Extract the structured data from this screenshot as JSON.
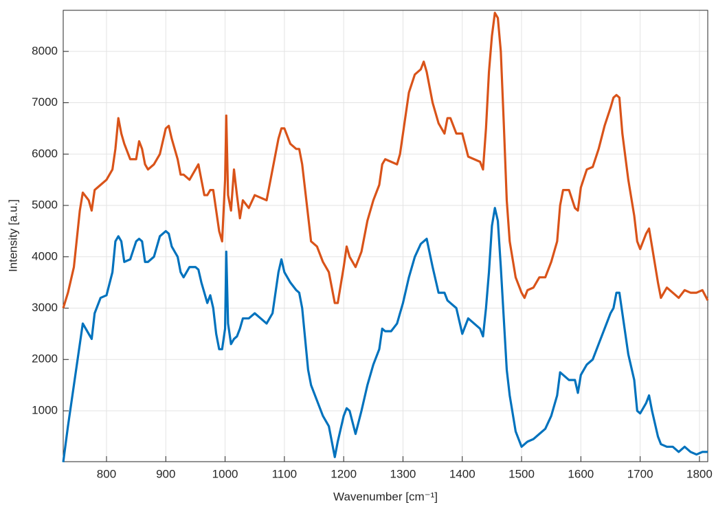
{
  "chart_data": {
    "type": "line",
    "xlabel": "Wavenumber [cm⁻¹]",
    "ylabel": "Intensity [a.u.]",
    "x": [
      727,
      735,
      745,
      755,
      760,
      770,
      775,
      780,
      790,
      800,
      810,
      815,
      820,
      825,
      830,
      840,
      850,
      855,
      860,
      865,
      870,
      880,
      890,
      900,
      905,
      910,
      920,
      925,
      930,
      940,
      950,
      955,
      960,
      965,
      970,
      975,
      980,
      985,
      990,
      995,
      1000,
      1002,
      1005,
      1010,
      1015,
      1020,
      1025,
      1030,
      1040,
      1050,
      1060,
      1070,
      1075,
      1080,
      1090,
      1095,
      1100,
      1110,
      1120,
      1125,
      1130,
      1140,
      1145,
      1155,
      1165,
      1175,
      1185,
      1190,
      1200,
      1205,
      1210,
      1220,
      1230,
      1240,
      1250,
      1260,
      1265,
      1270,
      1280,
      1290,
      1295,
      1300,
      1310,
      1320,
      1330,
      1335,
      1340,
      1350,
      1360,
      1365,
      1370,
      1375,
      1380,
      1390,
      1400,
      1410,
      1420,
      1430,
      1435,
      1440,
      1445,
      1450,
      1455,
      1460,
      1465,
      1470,
      1475,
      1480,
      1490,
      1500,
      1505,
      1510,
      1520,
      1530,
      1540,
      1550,
      1560,
      1565,
      1570,
      1580,
      1590,
      1595,
      1600,
      1610,
      1620,
      1630,
      1640,
      1650,
      1655,
      1660,
      1665,
      1670,
      1680,
      1690,
      1695,
      1700,
      1705,
      1710,
      1715,
      1720,
      1730,
      1735,
      1745,
      1755,
      1765,
      1775,
      1785,
      1795,
      1805,
      1814
    ],
    "series": [
      {
        "color": "#D95319",
        "values": [
          3000,
          3300,
          3800,
          4900,
          5250,
          5100,
          4900,
          5300,
          5400,
          5500,
          5700,
          6100,
          6700,
          6400,
          6200,
          5900,
          5900,
          6250,
          6100,
          5800,
          5700,
          5800,
          6000,
          6500,
          6550,
          6300,
          5900,
          5600,
          5600,
          5500,
          5700,
          5800,
          5500,
          5200,
          5200,
          5300,
          5300,
          4900,
          4500,
          4300,
          5500,
          6750,
          5200,
          4900,
          5700,
          5200,
          4750,
          5100,
          4950,
          5200,
          5150,
          5100,
          5400,
          5700,
          6300,
          6500,
          6500,
          6200,
          6100,
          6100,
          5800,
          4800,
          4300,
          4200,
          3900,
          3700,
          3100,
          3100,
          3800,
          4200,
          4000,
          3800,
          4100,
          4700,
          5100,
          5400,
          5800,
          5900,
          5850,
          5800,
          6000,
          6400,
          7200,
          7550,
          7650,
          7800,
          7600,
          7000,
          6600,
          6500,
          6400,
          6700,
          6700,
          6400,
          6400,
          5950,
          5900,
          5850,
          5700,
          6500,
          7600,
          8300,
          8750,
          8650,
          8000,
          6600,
          5100,
          4300,
          3600,
          3300,
          3200,
          3350,
          3400,
          3600,
          3600,
          3900,
          4300,
          5000,
          5300,
          5300,
          4950,
          4900,
          5350,
          5700,
          5750,
          6100,
          6550,
          6900,
          7100,
          7150,
          7100,
          6400,
          5500,
          4800,
          4300,
          4150,
          4300,
          4450,
          4550,
          4200,
          3500,
          3200,
          3400,
          3300,
          3200,
          3350,
          3300,
          3300,
          3350,
          3150
        ]
      },
      {
        "color": "#0072BD",
        "values": [
          0,
          700,
          1500,
          2300,
          2700,
          2500,
          2400,
          2900,
          3200,
          3250,
          3700,
          4300,
          4400,
          4300,
          3900,
          3950,
          4300,
          4350,
          4300,
          3900,
          3900,
          4000,
          4400,
          4500,
          4450,
          4200,
          4000,
          3700,
          3600,
          3800,
          3800,
          3750,
          3500,
          3300,
          3100,
          3250,
          3000,
          2500,
          2200,
          2200,
          2600,
          4100,
          2700,
          2300,
          2400,
          2450,
          2600,
          2800,
          2800,
          2900,
          2800,
          2700,
          2800,
          2900,
          3700,
          3950,
          3700,
          3500,
          3350,
          3300,
          3000,
          1800,
          1500,
          1200,
          900,
          700,
          100,
          400,
          900,
          1050,
          1000,
          550,
          1000,
          1500,
          1900,
          2200,
          2600,
          2550,
          2550,
          2700,
          2900,
          3100,
          3600,
          4000,
          4250,
          4300,
          4350,
          3800,
          3300,
          3300,
          3300,
          3150,
          3100,
          3000,
          2500,
          2800,
          2700,
          2600,
          2450,
          3000,
          3700,
          4600,
          4950,
          4700,
          3800,
          2800,
          1800,
          1300,
          600,
          300,
          350,
          400,
          450,
          550,
          650,
          900,
          1300,
          1750,
          1700,
          1600,
          1600,
          1350,
          1700,
          1900,
          2000,
          2300,
          2600,
          2900,
          3000,
          3300,
          3300,
          2900,
          2100,
          1600,
          1000,
          950,
          1050,
          1150,
          1300,
          1000,
          500,
          350,
          300,
          300,
          200,
          300,
          200,
          150,
          200,
          200
        ]
      }
    ],
    "xlim": [
      727,
      1814
    ],
    "ylim": [
      10,
      8800
    ],
    "xticks": [
      800,
      900,
      1000,
      1100,
      1200,
      1300,
      1400,
      1500,
      1600,
      1700,
      1800
    ],
    "yticks": [
      1000,
      2000,
      3000,
      4000,
      5000,
      6000,
      7000,
      8000
    ],
    "grid": true
  }
}
